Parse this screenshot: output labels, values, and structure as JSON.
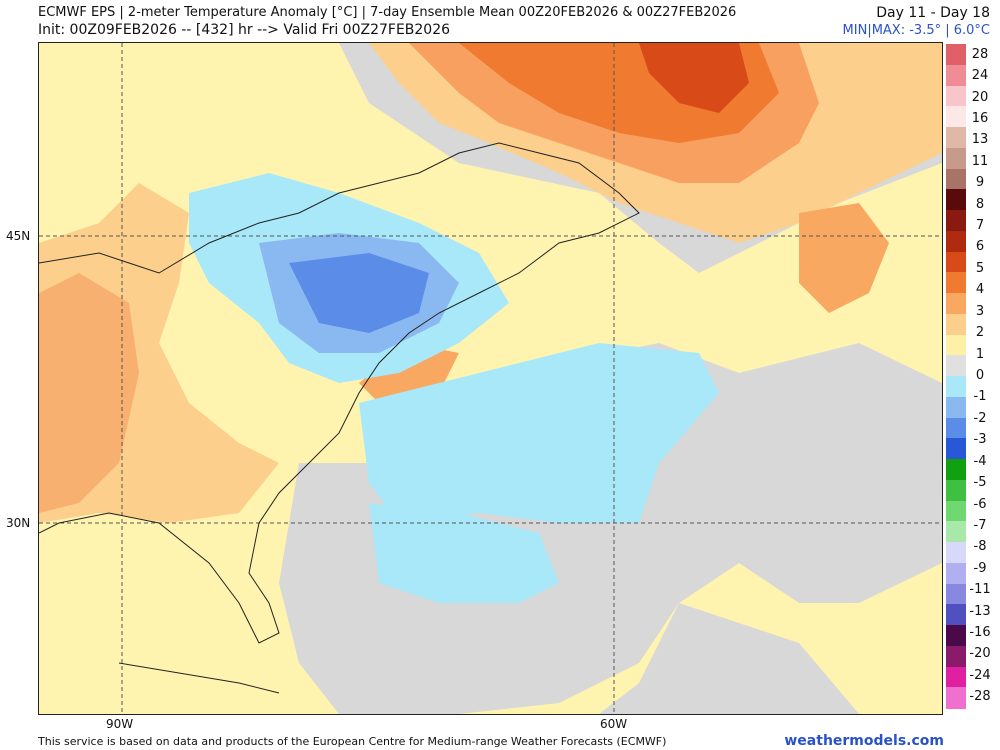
{
  "header": {
    "title": "ECMWF EPS | 2-meter Temperature Anomaly [°C] | 7-day Ensemble Mean 00Z20FEB2026 & 00Z27FEB2026",
    "init": "Init: 00Z09FEB2026 -- [432] hr --> Valid Fri 00Z27FEB2026",
    "period": "Day 11 - Day 18",
    "minmax": "MIN|MAX: -3.5° | 6.0°C"
  },
  "axes": {
    "lat_ticks": [
      "45N",
      "30N"
    ],
    "lon_ticks": [
      "90W",
      "60W"
    ]
  },
  "legend": {
    "labels": [
      "28",
      "24",
      "20",
      "16",
      "13",
      "11",
      "9",
      "8",
      "7",
      "6",
      "5",
      "4",
      "3",
      "2",
      "1",
      "0",
      "-1",
      "-2",
      "-3",
      "-4",
      "-5",
      "-6",
      "-7",
      "-8",
      "-9",
      "-11",
      "-13",
      "-16",
      "-20",
      "-24",
      "-28"
    ],
    "colors": [
      "#e0606a",
      "#f08c96",
      "#f8c6ca",
      "#fde8e8",
      "#e0b8a8",
      "#c89a8c",
      "#a87468",
      "#5a0a0a",
      "#8a1a10",
      "#b02a10",
      "#d84a18",
      "#f07a30",
      "#f8a860",
      "#fcd08c",
      "#fff0a8",
      "#e0e0e0",
      "#a8e8f8",
      "#8ab8f0",
      "#5a8ce8",
      "#2858d8",
      "#10a010",
      "#40c040",
      "#70d870",
      "#a8e8a8",
      "#d8d8f8",
      "#b0b0f0",
      "#8888e0",
      "#5050c0",
      "#4a0a4a",
      "#8a1a6a",
      "#e020a0",
      "#f070d0"
    ]
  },
  "footer": {
    "credit": "This service is based on data and products of the European Centre for Medium-range Weather Forecasts (ECMWF)",
    "brand": "weathermodels.com"
  }
}
